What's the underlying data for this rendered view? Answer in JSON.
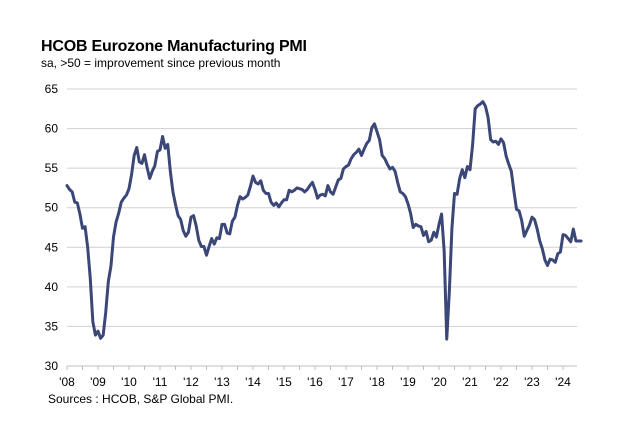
{
  "chart_data": {
    "type": "line",
    "title": "HCOB Eurozone Manufacturing PMI",
    "subtitle": "sa, >50 = improvement  since previous month",
    "source": "Sources : HCOB, S&P Global PMI.",
    "xlabel": "",
    "ylabel": "",
    "ylim": [
      30,
      65
    ],
    "yticks": [
      30,
      35,
      40,
      45,
      50,
      55,
      60,
      65
    ],
    "xlim": [
      "2008-01",
      "2024-08"
    ],
    "xtick_labels": [
      "'08",
      "'09",
      "'10",
      "'11",
      "'12",
      "'13",
      "'14",
      "'15",
      "'16",
      "'17",
      "'18",
      "'19",
      "'20",
      "'21",
      "'22",
      "'23",
      "'24"
    ],
    "grid": "horizontal",
    "legend": "none",
    "line_color": "#3A4777",
    "grid_color": "#D0D0D0",
    "series": [
      {
        "name": "HCOB Eurozone Manufacturing PMI",
        "start": "2008-01",
        "frequency": "monthly",
        "values": [
          52.8,
          52.3,
          52.0,
          50.7,
          50.6,
          49.2,
          47.4,
          47.6,
          45.0,
          41.1,
          35.6,
          33.9,
          34.4,
          33.5,
          33.9,
          36.8,
          40.7,
          42.6,
          46.3,
          48.2,
          49.3,
          50.7,
          51.2,
          51.6,
          52.4,
          54.2,
          56.6,
          57.6,
          55.8,
          55.6,
          56.7,
          55.1,
          53.7,
          54.6,
          55.3,
          57.1,
          57.3,
          59.0,
          57.5,
          58.0,
          54.6,
          52.0,
          50.4,
          49.0,
          48.5,
          47.1,
          46.4,
          46.9,
          48.8,
          49.0,
          47.7,
          45.9,
          45.1,
          45.1,
          44.0,
          45.1,
          46.1,
          45.4,
          46.2,
          46.1,
          47.9,
          47.9,
          46.8,
          46.7,
          48.3,
          48.8,
          50.3,
          51.4,
          51.1,
          51.3,
          51.6,
          52.7,
          54.0,
          53.2,
          53.0,
          53.4,
          52.2,
          51.8,
          51.8,
          50.7,
          50.3,
          50.6,
          50.1,
          50.6,
          51.0,
          51.0,
          52.2,
          52.0,
          52.2,
          52.5,
          52.4,
          52.3,
          52.0,
          52.3,
          52.8,
          53.2,
          52.3,
          51.2,
          51.6,
          51.7,
          51.5,
          52.8,
          52.0,
          51.7,
          52.6,
          53.5,
          53.7,
          54.9,
          55.2,
          55.4,
          56.2,
          56.7,
          57.0,
          57.4,
          56.6,
          57.4,
          58.1,
          58.5,
          60.1,
          60.6,
          59.6,
          58.6,
          56.6,
          56.2,
          55.5,
          54.9,
          55.1,
          54.6,
          53.2,
          52.0,
          51.8,
          51.4,
          50.5,
          49.3,
          47.5,
          47.9,
          47.7,
          47.6,
          46.5,
          47.0,
          45.7,
          45.9,
          46.9,
          46.3,
          47.9,
          49.2,
          44.5,
          33.4,
          39.4,
          47.4,
          51.8,
          51.7,
          53.7,
          54.8,
          53.8,
          55.2,
          54.8,
          57.9,
          62.5,
          62.9,
          63.1,
          63.4,
          62.8,
          61.4,
          58.6,
          58.3,
          58.4,
          58.0,
          58.7,
          58.2,
          56.5,
          55.5,
          54.6,
          52.1,
          49.8,
          49.6,
          48.4,
          46.4,
          47.1,
          47.8,
          48.8,
          48.5,
          47.3,
          45.8,
          44.8,
          43.4,
          42.7,
          43.5,
          43.4,
          43.1,
          44.2,
          44.4,
          46.6,
          46.5,
          46.1,
          45.7,
          47.3,
          45.8,
          45.8,
          45.8
        ]
      }
    ]
  }
}
